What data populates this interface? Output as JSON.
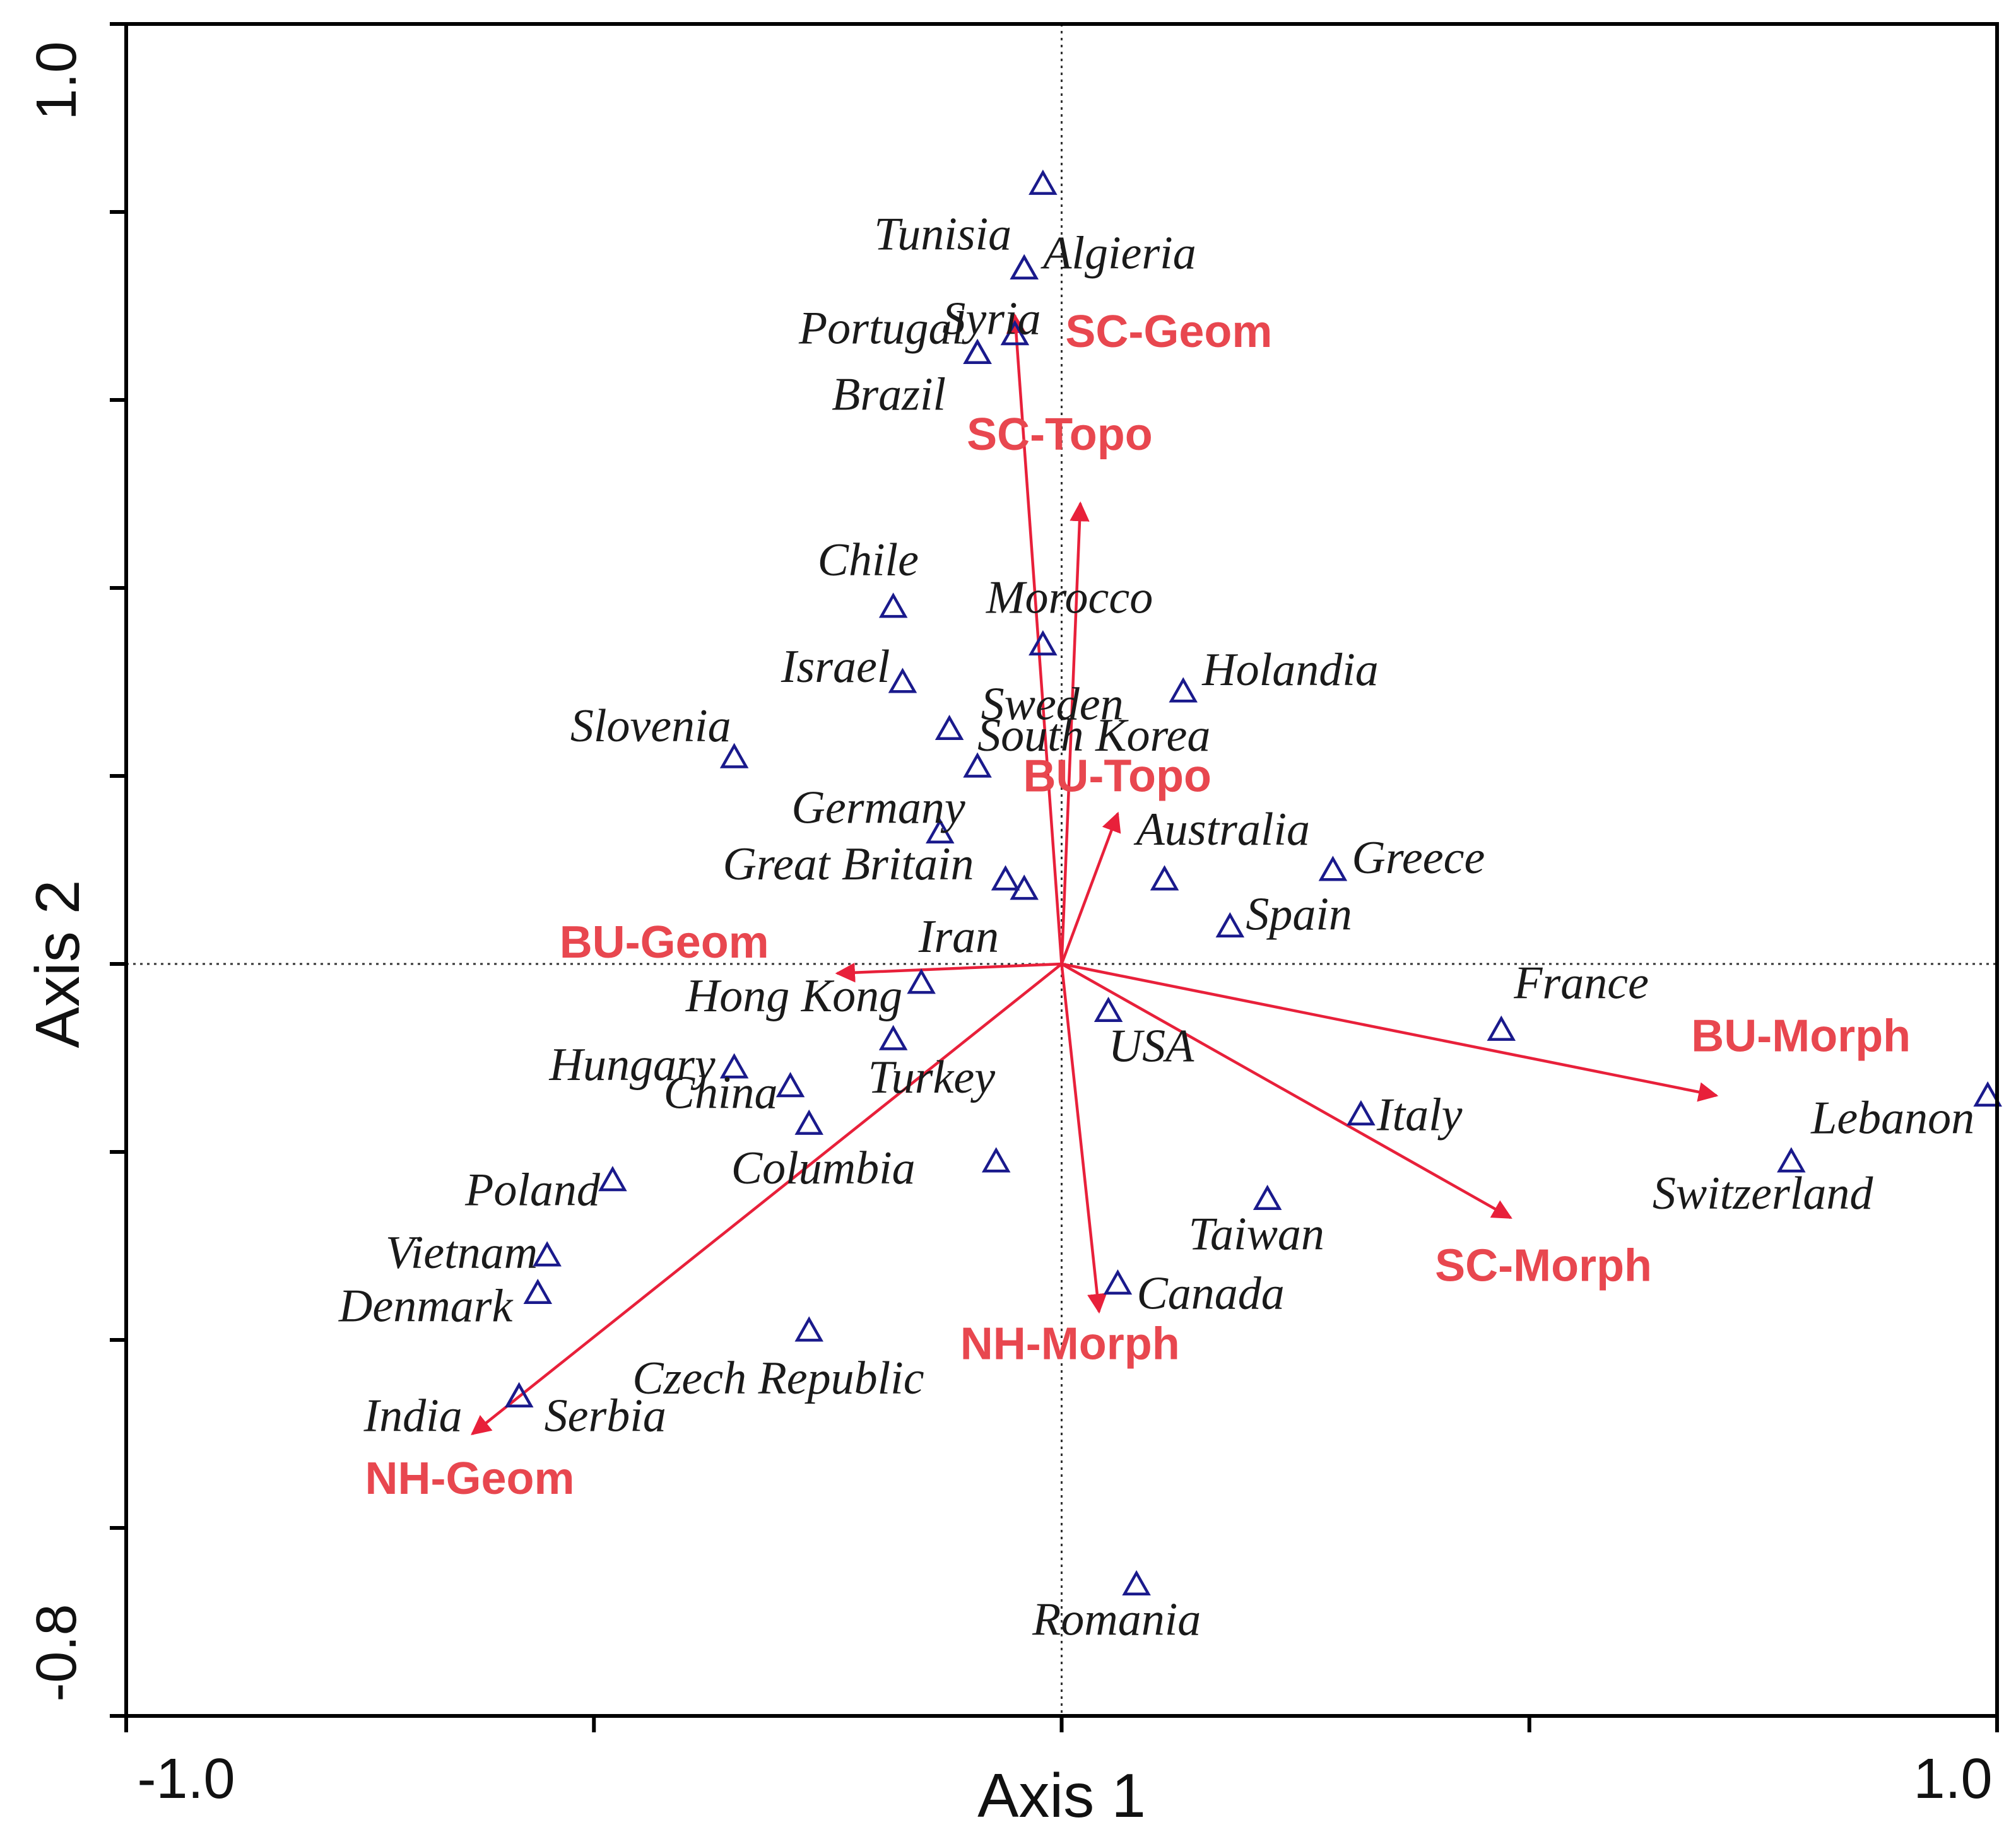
{
  "chart_data": {
    "type": "scatter",
    "subtype": "biplot",
    "xlabel": "Axis 1",
    "ylabel": "Axis 2",
    "xlim": [
      -1.0,
      1.0
    ],
    "ylim": [
      -0.8,
      1.0
    ],
    "x_tick_labels": [
      "-1.0",
      "1.0"
    ],
    "y_tick_labels": [
      "1.0",
      "-0.8"
    ],
    "reference_lines": "dotted lines at x=0 and y=0",
    "colors": {
      "sites": "#1a1a8c",
      "vectors": "#e8203a",
      "vector_labels": "#e8474f"
    },
    "sites": [
      {
        "name": "",
        "x": -0.02,
        "y": 0.83
      },
      {
        "name": "Tunisia",
        "x": -0.04,
        "y": 0.74
      },
      {
        "name": "Algieria",
        "x": -0.04,
        "y": 0.74
      },
      {
        "name": "Syria",
        "x": -0.05,
        "y": 0.67
      },
      {
        "name": "Portugal",
        "x": -0.09,
        "y": 0.65
      },
      {
        "name": "Brazil",
        "x": -0.09,
        "y": 0.65
      },
      {
        "name": "Chile",
        "x": -0.18,
        "y": 0.38
      },
      {
        "name": "Morocco",
        "x": -0.02,
        "y": 0.34
      },
      {
        "name": "Israel",
        "x": -0.17,
        "y": 0.3
      },
      {
        "name": "Holandia",
        "x": 0.13,
        "y": 0.29
      },
      {
        "name": "Sweden",
        "x": -0.12,
        "y": 0.25
      },
      {
        "name": "Slovenia",
        "x": -0.35,
        "y": 0.22
      },
      {
        "name": "South Korea",
        "x": -0.09,
        "y": 0.21
      },
      {
        "name": "Germany",
        "x": -0.13,
        "y": 0.14
      },
      {
        "name": "Greece",
        "x": 0.29,
        "y": 0.1
      },
      {
        "name": "Australia",
        "x": 0.11,
        "y": 0.09
      },
      {
        "name": "Great Britain",
        "x": -0.06,
        "y": 0.09
      },
      {
        "name": "Iran",
        "x": -0.04,
        "y": 0.08
      },
      {
        "name": "Spain",
        "x": 0.18,
        "y": 0.04
      },
      {
        "name": "Hong Kong",
        "x": -0.15,
        "y": -0.02
      },
      {
        "name": "USA",
        "x": 0.05,
        "y": -0.05
      },
      {
        "name": "France",
        "x": 0.47,
        "y": -0.07
      },
      {
        "name": "Turkey",
        "x": -0.18,
        "y": -0.08
      },
      {
        "name": "Hungary",
        "x": -0.35,
        "y": -0.11
      },
      {
        "name": "China",
        "x": -0.29,
        "y": -0.13
      },
      {
        "name": "",
        "x": -0.27,
        "y": -0.17
      },
      {
        "name": "Lebanon",
        "x": 0.99,
        "y": -0.14
      },
      {
        "name": "Italy",
        "x": 0.32,
        "y": -0.16
      },
      {
        "name": "Switzerland",
        "x": 0.78,
        "y": -0.21
      },
      {
        "name": "Columbia",
        "x": -0.07,
        "y": -0.21
      },
      {
        "name": "Poland",
        "x": -0.48,
        "y": -0.23
      },
      {
        "name": "Taiwan",
        "x": 0.22,
        "y": -0.25
      },
      {
        "name": "Vietnam",
        "x": -0.55,
        "y": -0.31
      },
      {
        "name": "Denmark",
        "x": -0.56,
        "y": -0.35
      },
      {
        "name": "Canada",
        "x": 0.06,
        "y": -0.34
      },
      {
        "name": "Czech Republic",
        "x": -0.27,
        "y": -0.39
      },
      {
        "name": "India",
        "x": -0.58,
        "y": -0.46
      },
      {
        "name": "Serbia",
        "x": -0.58,
        "y": -0.46
      },
      {
        "name": "Romania",
        "x": 0.08,
        "y": -0.66
      }
    ],
    "vectors": [
      {
        "name": "SC-Geom",
        "x": -0.05,
        "y": 0.69
      },
      {
        "name": "SC-Topo",
        "x": 0.02,
        "y": 0.49
      },
      {
        "name": "BU-Topo",
        "x": 0.06,
        "y": 0.16
      },
      {
        "name": "BU-Geom",
        "x": -0.24,
        "y": -0.01
      },
      {
        "name": "BU-Morph",
        "x": 0.7,
        "y": -0.14
      },
      {
        "name": "SC-Morph",
        "x": 0.48,
        "y": -0.27
      },
      {
        "name": "NH-Morph",
        "x": 0.04,
        "y": -0.37
      },
      {
        "name": "NH-Geom",
        "x": -0.63,
        "y": -0.5
      }
    ]
  }
}
